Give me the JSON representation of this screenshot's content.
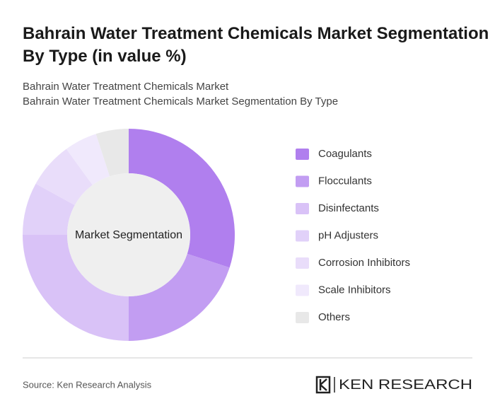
{
  "chart_data": {
    "type": "donut",
    "title": "Bahrain Water Treatment Chemicals Market Segmentation By Type (in value %)",
    "subtitle": [
      "Bahrain Water Treatment Chemicals Market",
      "Bahrain Water Treatment Chemicals Market Segmentation By Type"
    ],
    "center_label": "Market Segmentation",
    "categories": [
      "Coagulants",
      "Flocculants",
      "Disinfectants",
      "pH Adjusters",
      "Corrosion Inhibitors",
      "Scale Inhibitors",
      "Others"
    ],
    "values": [
      30,
      20,
      25,
      8,
      7,
      5,
      5
    ],
    "colors": [
      "#b07fee",
      "#c29df2",
      "#d9c2f7",
      "#e1d1f9",
      "#e9ddfa",
      "#f0e9fc",
      "#e8e8e8"
    ],
    "source": "Source: Ken Research Analysis",
    "logo": "KEN RESEARCH"
  }
}
